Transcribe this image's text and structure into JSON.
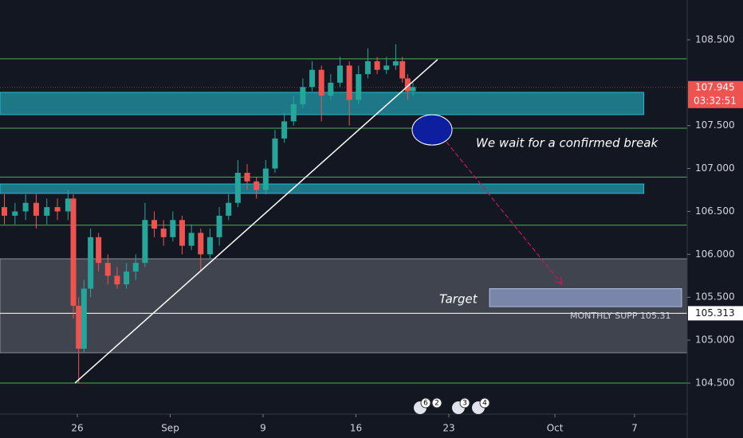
{
  "chart_data": {
    "type": "candlestick",
    "x": [
      -5.5,
      -4.7,
      -3.9,
      -3.1,
      -2.3,
      -1.5,
      -0.7,
      -0.3,
      0.1,
      0.5,
      1.0,
      1.6,
      2.3,
      3.0,
      3.7,
      4.4,
      5.1,
      5.8,
      6.5,
      7.2,
      7.9,
      8.6,
      9.3,
      10.0,
      10.7,
      11.4,
      12.1,
      12.8,
      13.5,
      14.2,
      14.9,
      15.6,
      16.3,
      17.0,
      17.7,
      18.4,
      19.1,
      19.8,
      20.5,
      21.2,
      21.9,
      22.6,
      23.3,
      24.0,
      24.5,
      24.9,
      25.3
    ],
    "open": [
      106.55,
      106.45,
      106.5,
      106.6,
      106.45,
      106.55,
      106.5,
      106.65,
      105.4,
      104.9,
      105.6,
      106.2,
      105.9,
      105.75,
      105.65,
      105.8,
      105.9,
      106.4,
      106.3,
      106.2,
      106.4,
      106.1,
      106.25,
      106.0,
      106.2,
      106.45,
      106.6,
      106.95,
      106.85,
      106.75,
      107.0,
      107.35,
      107.55,
      107.75,
      107.95,
      108.15,
      107.85,
      108.0,
      108.2,
      107.8,
      108.1,
      108.25,
      108.15,
      108.2,
      108.25,
      108.05,
      107.9
    ],
    "high": [
      106.7,
      106.6,
      106.7,
      106.7,
      106.65,
      106.65,
      106.75,
      106.7,
      105.5,
      105.7,
      106.3,
      106.25,
      106.0,
      105.85,
      105.9,
      106.0,
      106.6,
      106.5,
      106.4,
      106.5,
      106.45,
      106.35,
      106.3,
      106.3,
      106.55,
      106.7,
      107.1,
      107.05,
      106.9,
      107.1,
      107.45,
      107.65,
      107.85,
      108.05,
      108.25,
      108.2,
      108.1,
      108.3,
      108.25,
      108.2,
      108.4,
      108.3,
      108.3,
      108.45,
      108.3,
      108.1,
      108.0
    ],
    "low": [
      106.35,
      106.35,
      106.4,
      106.3,
      106.35,
      106.4,
      106.4,
      105.25,
      104.5,
      104.85,
      105.5,
      105.8,
      105.65,
      105.6,
      105.6,
      105.7,
      105.85,
      106.2,
      106.1,
      106.15,
      106.0,
      106.05,
      105.8,
      105.95,
      106.1,
      106.4,
      106.55,
      106.75,
      106.65,
      106.7,
      106.95,
      107.3,
      107.5,
      107.7,
      107.9,
      107.55,
      107.8,
      107.95,
      107.5,
      107.75,
      108.05,
      108.1,
      108.1,
      108.15,
      108.0,
      107.8,
      107.85
    ],
    "close": [
      106.45,
      106.5,
      106.6,
      106.45,
      106.55,
      106.5,
      106.65,
      105.4,
      104.9,
      105.6,
      106.2,
      105.9,
      105.75,
      105.65,
      105.8,
      105.9,
      106.4,
      106.3,
      106.2,
      106.4,
      106.1,
      106.25,
      106.0,
      106.2,
      106.45,
      106.6,
      106.95,
      106.85,
      106.75,
      107.0,
      107.35,
      107.55,
      107.75,
      107.95,
      108.15,
      107.85,
      108.0,
      108.2,
      107.8,
      108.1,
      108.25,
      108.15,
      108.2,
      108.25,
      108.05,
      107.9,
      107.95
    ],
    "up_color": "#26a69a",
    "down_color": "#ef5350",
    "xlim": [
      -5.83,
      45.97
    ],
    "xticks": [
      {
        "value": 0,
        "label": "26"
      },
      {
        "value": 7,
        "label": "Sep"
      },
      {
        "value": 14,
        "label": "9"
      },
      {
        "value": 21,
        "label": "16"
      },
      {
        "value": 28,
        "label": "23"
      },
      {
        "value": 36,
        "label": "Oct"
      },
      {
        "value": 42,
        "label": "7"
      }
    ],
    "ylim": [
      104.138,
      108.964
    ],
    "yticks": [
      {
        "value": 104.5,
        "label": "104.500"
      },
      {
        "value": 105,
        "label": "105.000"
      },
      {
        "value": 105.5,
        "label": "105.500"
      },
      {
        "value": 106,
        "label": "106.000"
      },
      {
        "value": 106.5,
        "label": "106.500"
      },
      {
        "value": 107,
        "label": "107.000"
      },
      {
        "value": 107.5,
        "label": "107.500"
      },
      {
        "value": 108.5,
        "label": "108.500"
      }
    ],
    "levels": [
      108.278,
      107.47,
      106.9,
      106.34,
      104.5
    ],
    "level_color": "#4caf50",
    "zones": [
      {
        "low": 107.628,
        "high": 107.888,
        "x_end": 42.7,
        "color": "#26c6da"
      },
      {
        "low": 106.71,
        "high": 106.82,
        "x_end": 42.7,
        "color": "#26c6da"
      },
      {
        "low": 104.853,
        "high": 105.948,
        "x_end": 45.97,
        "color": "#9598a1"
      }
    ],
    "trendline": {
      "x": [
        -0.18,
        27.15
      ],
      "y": [
        104.5,
        108.27
      ]
    },
    "target_box": {
      "x": [
        31.07,
        45.55
      ],
      "y": [
        105.39,
        105.6
      ]
    },
    "ellipse": {
      "x": 26.74,
      "y": 107.45
    },
    "arrow": {
      "x": [
        27.82,
        36.54
      ],
      "y": [
        107.31,
        105.65
      ]
    },
    "support_price": {
      "value": 105.313,
      "label": "105.313"
    },
    "last_price": {
      "value": 107.945,
      "label": "107.945"
    },
    "countdown": "03:32:51",
    "note": "We wait for a confirmed break",
    "target_label": "Target",
    "support_label": "MONTHLY SUPP 105.31",
    "event_counts": [
      "6",
      "2",
      "3",
      "4"
    ]
  }
}
